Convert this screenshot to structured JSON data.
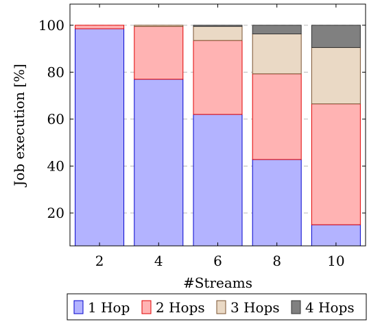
{
  "chart_data": {
    "type": "bar",
    "stacked": true,
    "title": "",
    "xlabel": "#Streams",
    "ylabel": "Job execution [%]",
    "categories": [
      "2",
      "4",
      "6",
      "8",
      "10"
    ],
    "ylim": [
      6,
      109
    ],
    "yticks": [
      20,
      40,
      60,
      80,
      100
    ],
    "grid": "horizontal dashed",
    "legend_position": "bottom",
    "series": [
      {
        "name": "1 Hop",
        "values": [
          98.5,
          77,
          62,
          42.8,
          15
        ],
        "fill": "#b3b3ff",
        "stroke": "#0000cc"
      },
      {
        "name": "2 Hops",
        "values": [
          1.5,
          22.5,
          31.5,
          36.5,
          51.5
        ],
        "fill": "#ffb3b3",
        "stroke": "#e00000"
      },
      {
        "name": "3 Hops",
        "values": [
          0,
          0.5,
          6,
          17,
          24
        ],
        "fill": "#ead9c5",
        "stroke": "#7a5230"
      },
      {
        "name": "4 Hops",
        "values": [
          0,
          0,
          0.5,
          3.7,
          9.5
        ],
        "fill": "#808080",
        "stroke": "#333333"
      }
    ]
  }
}
